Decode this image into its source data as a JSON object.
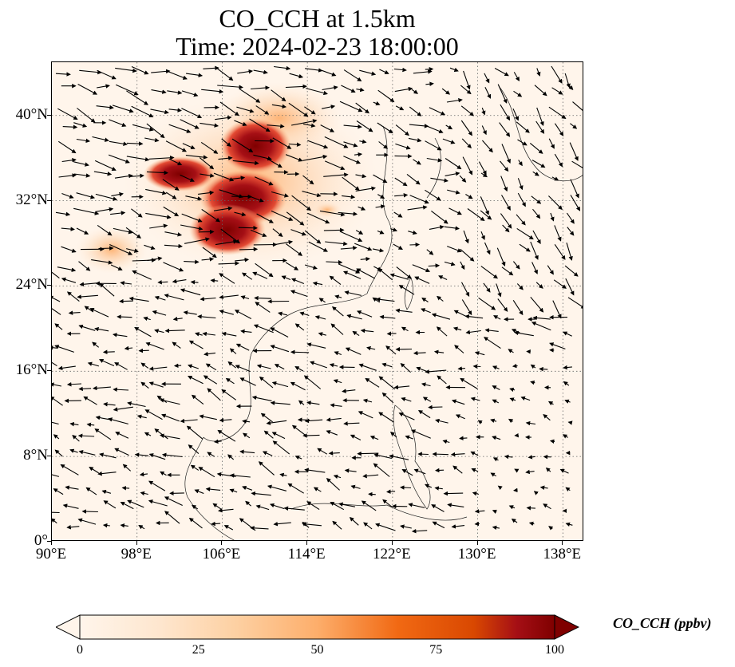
{
  "title_line_1": "CO_CCH at 1.5km",
  "title_line_2": "Time: 2024-02-23 18:00:00",
  "map": {
    "projection": "PlateCarree",
    "lon_range": [
      90,
      140
    ],
    "lat_range": [
      0,
      45
    ],
    "gridlines": "dotted",
    "lon_ticks": [
      {
        "value": 90,
        "label": "90°E"
      },
      {
        "value": 98,
        "label": "98°E"
      },
      {
        "value": 106,
        "label": "106°E"
      },
      {
        "value": 114,
        "label": "114°E"
      },
      {
        "value": 122,
        "label": "122°E"
      },
      {
        "value": 130,
        "label": "130°E"
      },
      {
        "value": 138,
        "label": "138°E"
      }
    ],
    "lat_ticks": [
      {
        "value": 40,
        "label": "40°N"
      },
      {
        "value": 32,
        "label": "32°N"
      },
      {
        "value": 24,
        "label": "24°N"
      },
      {
        "value": 16,
        "label": "16°N"
      },
      {
        "value": 8,
        "label": "8°N"
      },
      {
        "value": 0,
        "label": "0°"
      }
    ],
    "background_color": "#fff5eb",
    "high_concentration_region": "central and northern China",
    "wind_vectors": "black arrows"
  },
  "colorbar": {
    "label": "CO_CCH (ppbv)",
    "min": 0,
    "max": 100,
    "colormap": "OrRd",
    "extend": "both",
    "ticks": [
      {
        "value": 0,
        "label": "0"
      },
      {
        "value": 25,
        "label": "25"
      },
      {
        "value": 50,
        "label": "50"
      },
      {
        "value": 75,
        "label": "75"
      },
      {
        "value": 100,
        "label": "100"
      }
    ],
    "colors": [
      "#fff5eb",
      "#fdd0a2",
      "#fdae6b",
      "#f16913",
      "#d94801",
      "#a50f15",
      "#7f0000"
    ]
  }
}
